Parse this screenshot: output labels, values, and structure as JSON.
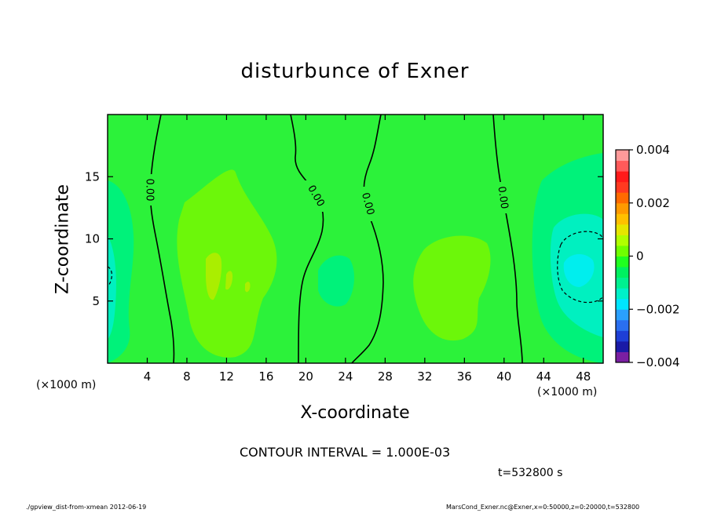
{
  "chart_data": {
    "type": "heatmap",
    "title": "disturbunce of Exner",
    "xlabel": "X-coordinate",
    "ylabel": "Z-coordinate",
    "x_unit": "(×1000 m)",
    "y_unit": "(×1000 m)",
    "xlim": [
      0,
      50
    ],
    "ylim": [
      0,
      20
    ],
    "x_ticks": [
      4,
      8,
      12,
      16,
      20,
      24,
      28,
      32,
      36,
      40,
      44,
      48
    ],
    "y_ticks": [
      5,
      10,
      15
    ],
    "colorbar": {
      "min": -0.004,
      "max": 0.004,
      "tick_values": [
        0.004,
        0.002,
        0,
        -0.002,
        -0.004
      ],
      "tick_labels": [
        "0.004",
        "0.002",
        "0",
        "−0.002",
        "−0.004"
      ],
      "colors": [
        "#7a1fa2",
        "#1a1aa6",
        "#1e3fd6",
        "#2a6ff0",
        "#2aa0ff",
        "#00e5ff",
        "#00f0c8",
        "#00f090",
        "#00f060",
        "#20ff20",
        "#70ff00",
        "#b0ff00",
        "#e6e600",
        "#ffc000",
        "#ff9a00",
        "#ff6a00",
        "#ff3a20",
        "#ff1a1a",
        "#ff5a5a",
        "#ff9a9a"
      ]
    },
    "contour_labels": [
      "0.00",
      "0.00",
      "0.00",
      "0.00"
    ],
    "contour_interval_text": "CONTOUR INTERVAL = 1.000E-03"
  },
  "time_label": "t=532800 s",
  "footer": {
    "left": "./gpview_dist-from-xmean  2012-06-19",
    "right": "MarsCond_Exner.nc@Exner,x=0:50000,z=0:20000,t=532800"
  },
  "colors": {
    "background_field": "#2cf23a",
    "positive_region": "#6cf70a",
    "positive_core": "#aaee00",
    "negative_region": "#00f27a",
    "negative_core": "#00f0c0",
    "negative_center": "#00eeee"
  }
}
